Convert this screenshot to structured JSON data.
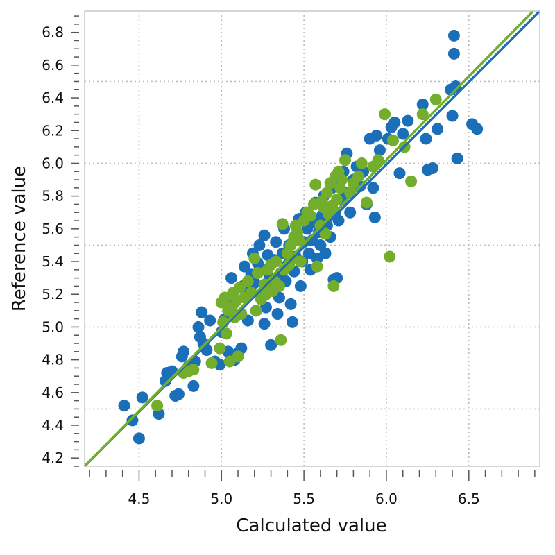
{
  "chart_data": {
    "type": "scatter",
    "title": "",
    "xlabel": "Calculated value",
    "ylabel": "Reference value",
    "xlim": [
      4.17,
      6.93
    ],
    "ylim": [
      4.15,
      6.93
    ],
    "x_ticks": [
      "4.5",
      "5.0",
      "5.5",
      "6.0",
      "6.5"
    ],
    "y_ticks": [
      "4.2",
      "4.4",
      "4.6",
      "4.8",
      "5.0",
      "5.2",
      "5.4",
      "5.6",
      "5.8",
      "6.0",
      "6.2",
      "6.4",
      "6.6",
      "6.8"
    ],
    "grid": true,
    "legend": "none",
    "colors": {
      "series_1": "#1a6fb8",
      "series_2": "#72ad2b",
      "grid": "#bdbdbd",
      "frame": "#c8c8c8",
      "text": "#111111"
    },
    "series": [
      {
        "color": "#1a6fb8",
        "points": [
          [
            4.41,
            4.52
          ],
          [
            4.46,
            4.43
          ],
          [
            4.5,
            4.32
          ],
          [
            4.52,
            4.57
          ],
          [
            4.62,
            4.47
          ],
          [
            4.66,
            4.67
          ],
          [
            4.67,
            4.72
          ],
          [
            4.7,
            4.73
          ],
          [
            4.72,
            4.58
          ],
          [
            4.74,
            4.59
          ],
          [
            4.76,
            4.82
          ],
          [
            4.77,
            4.85
          ],
          [
            4.8,
            4.76
          ],
          [
            4.83,
            4.64
          ],
          [
            4.84,
            4.79
          ],
          [
            4.86,
            5.0
          ],
          [
            4.87,
            4.94
          ],
          [
            4.88,
            5.09
          ],
          [
            4.89,
            4.9
          ],
          [
            4.91,
            4.86
          ],
          [
            4.93,
            5.04
          ],
          [
            4.96,
            4.79
          ],
          [
            4.99,
            4.77
          ],
          [
            5.0,
            4.97
          ],
          [
            5.02,
            5.05
          ],
          [
            5.04,
            4.85
          ],
          [
            5.06,
            5.3
          ],
          [
            5.07,
            5.14
          ],
          [
            5.08,
            4.8
          ],
          [
            5.1,
            4.84
          ],
          [
            5.12,
            4.87
          ],
          [
            5.13,
            5.25
          ],
          [
            5.14,
            5.37
          ],
          [
            5.15,
            5.22
          ],
          [
            5.16,
            5.04
          ],
          [
            5.18,
            5.32
          ],
          [
            5.19,
            5.45
          ],
          [
            5.2,
            5.27
          ],
          [
            5.21,
            5.1
          ],
          [
            5.22,
            5.39
          ],
          [
            5.23,
            5.5
          ],
          [
            5.24,
            5.2
          ],
          [
            5.25,
            5.35
          ],
          [
            5.26,
            5.56
          ],
          [
            5.26,
            5.02
          ],
          [
            5.27,
            5.12
          ],
          [
            5.28,
            5.44
          ],
          [
            5.29,
            5.3
          ],
          [
            5.3,
            4.89
          ],
          [
            5.31,
            5.25
          ],
          [
            5.32,
            5.41
          ],
          [
            5.33,
            5.52
          ],
          [
            5.34,
            5.08
          ],
          [
            5.35,
            5.18
          ],
          [
            5.36,
            5.33
          ],
          [
            5.37,
            5.45
          ],
          [
            5.38,
            5.6
          ],
          [
            5.39,
            5.28
          ],
          [
            5.4,
            5.38
          ],
          [
            5.41,
            5.5
          ],
          [
            5.42,
            5.14
          ],
          [
            5.43,
            5.03
          ],
          [
            5.44,
            5.34
          ],
          [
            5.45,
            5.43
          ],
          [
            5.46,
            5.55
          ],
          [
            5.47,
            5.66
          ],
          [
            5.48,
            5.25
          ],
          [
            5.49,
            5.4
          ],
          [
            5.5,
            5.52
          ],
          [
            5.51,
            5.7
          ],
          [
            5.52,
            5.6
          ],
          [
            5.53,
            5.45
          ],
          [
            5.54,
            5.35
          ],
          [
            5.55,
            5.53
          ],
          [
            5.56,
            5.64
          ],
          [
            5.57,
            5.76
          ],
          [
            5.58,
            5.42
          ],
          [
            5.59,
            5.58
          ],
          [
            5.6,
            5.5
          ],
          [
            5.61,
            5.68
          ],
          [
            5.62,
            5.8
          ],
          [
            5.63,
            5.45
          ],
          [
            5.64,
            5.62
          ],
          [
            5.65,
            5.72
          ],
          [
            5.66,
            5.55
          ],
          [
            5.67,
            5.85
          ],
          [
            5.68,
            5.29
          ],
          [
            5.69,
            5.7
          ],
          [
            5.7,
            5.3
          ],
          [
            5.71,
            5.65
          ],
          [
            5.72,
            5.9
          ],
          [
            5.73,
            5.78
          ],
          [
            5.74,
            5.95
          ],
          [
            5.75,
            5.82
          ],
          [
            5.76,
            6.06
          ],
          [
            5.78,
            5.7
          ],
          [
            5.8,
            5.9
          ],
          [
            5.82,
            5.98
          ],
          [
            5.84,
            5.86
          ],
          [
            5.86,
            5.95
          ],
          [
            5.88,
            5.75
          ],
          [
            5.9,
            6.15
          ],
          [
            5.92,
            5.85
          ],
          [
            5.93,
            5.67
          ],
          [
            5.94,
            6.17
          ],
          [
            5.96,
            6.08
          ],
          [
            6.01,
            6.15
          ],
          [
            6.03,
            6.22
          ],
          [
            6.05,
            6.25
          ],
          [
            6.08,
            5.94
          ],
          [
            6.1,
            6.18
          ],
          [
            6.13,
            6.26
          ],
          [
            6.22,
            6.36
          ],
          [
            6.24,
            6.15
          ],
          [
            6.25,
            5.96
          ],
          [
            6.28,
            5.97
          ],
          [
            6.31,
            6.21
          ],
          [
            6.39,
            6.45
          ],
          [
            6.4,
            6.29
          ],
          [
            6.41,
            6.78
          ],
          [
            6.41,
            6.67
          ],
          [
            6.42,
            6.47
          ],
          [
            6.43,
            6.03
          ],
          [
            6.52,
            6.24
          ],
          [
            6.55,
            6.21
          ]
        ]
      },
      {
        "color": "#72ad2b",
        "points": [
          [
            4.61,
            4.52
          ],
          [
            4.77,
            4.72
          ],
          [
            4.8,
            4.73
          ],
          [
            4.83,
            4.74
          ],
          [
            4.94,
            4.78
          ],
          [
            4.99,
            4.87
          ],
          [
            5.0,
            5.15
          ],
          [
            5.01,
            5.03
          ],
          [
            5.02,
            5.18
          ],
          [
            5.03,
            4.96
          ],
          [
            5.04,
            5.1
          ],
          [
            5.05,
            4.79
          ],
          [
            5.06,
            5.12
          ],
          [
            5.07,
            5.21
          ],
          [
            5.08,
            5.06
          ],
          [
            5.09,
            5.16
          ],
          [
            5.1,
            4.82
          ],
          [
            5.11,
            5.24
          ],
          [
            5.12,
            5.08
          ],
          [
            5.14,
            5.18
          ],
          [
            5.16,
            5.28
          ],
          [
            5.18,
            5.21
          ],
          [
            5.2,
            5.42
          ],
          [
            5.21,
            5.1
          ],
          [
            5.22,
            5.33
          ],
          [
            5.24,
            5.17
          ],
          [
            5.26,
            5.26
          ],
          [
            5.27,
            5.2
          ],
          [
            5.28,
            5.35
          ],
          [
            5.3,
            5.38
          ],
          [
            5.31,
            5.22
          ],
          [
            5.32,
            5.28
          ],
          [
            5.33,
            5.4
          ],
          [
            5.35,
            5.25
          ],
          [
            5.36,
            4.92
          ],
          [
            5.37,
            5.63
          ],
          [
            5.38,
            5.35
          ],
          [
            5.4,
            5.45
          ],
          [
            5.41,
            5.38
          ],
          [
            5.42,
            5.5
          ],
          [
            5.43,
            5.42
          ],
          [
            5.44,
            5.55
          ],
          [
            5.45,
            5.62
          ],
          [
            5.46,
            5.58
          ],
          [
            5.47,
            5.53
          ],
          [
            5.48,
            5.4
          ],
          [
            5.5,
            5.65
          ],
          [
            5.52,
            5.7
          ],
          [
            5.54,
            5.68
          ],
          [
            5.56,
            5.75
          ],
          [
            5.57,
            5.87
          ],
          [
            5.58,
            5.37
          ],
          [
            5.6,
            5.62
          ],
          [
            5.61,
            5.77
          ],
          [
            5.62,
            5.73
          ],
          [
            5.63,
            5.57
          ],
          [
            5.64,
            5.82
          ],
          [
            5.65,
            5.69
          ],
          [
            5.66,
            5.88
          ],
          [
            5.67,
            5.74
          ],
          [
            5.68,
            5.25
          ],
          [
            5.69,
            5.92
          ],
          [
            5.7,
            5.78
          ],
          [
            5.71,
            5.95
          ],
          [
            5.72,
            5.85
          ],
          [
            5.73,
            5.9
          ],
          [
            5.75,
            6.02
          ],
          [
            5.78,
            5.82
          ],
          [
            5.8,
            5.88
          ],
          [
            5.83,
            5.92
          ],
          [
            5.85,
            6.0
          ],
          [
            5.88,
            5.76
          ],
          [
            5.92,
            5.98
          ],
          [
            5.95,
            6.02
          ],
          [
            5.99,
            6.3
          ],
          [
            6.02,
            5.43
          ],
          [
            6.04,
            6.14
          ],
          [
            6.11,
            6.1
          ],
          [
            6.15,
            5.89
          ],
          [
            6.22,
            6.3
          ],
          [
            6.3,
            6.39
          ]
        ]
      }
    ],
    "fit_lines": [
      {
        "color": "#1a6fb8",
        "from": [
          4.17,
          4.15
        ],
        "to": [
          6.93,
          6.93
        ]
      },
      {
        "color": "#72ad2b",
        "from": [
          4.17,
          4.15
        ],
        "to": [
          6.89,
          6.93
        ]
      }
    ]
  }
}
